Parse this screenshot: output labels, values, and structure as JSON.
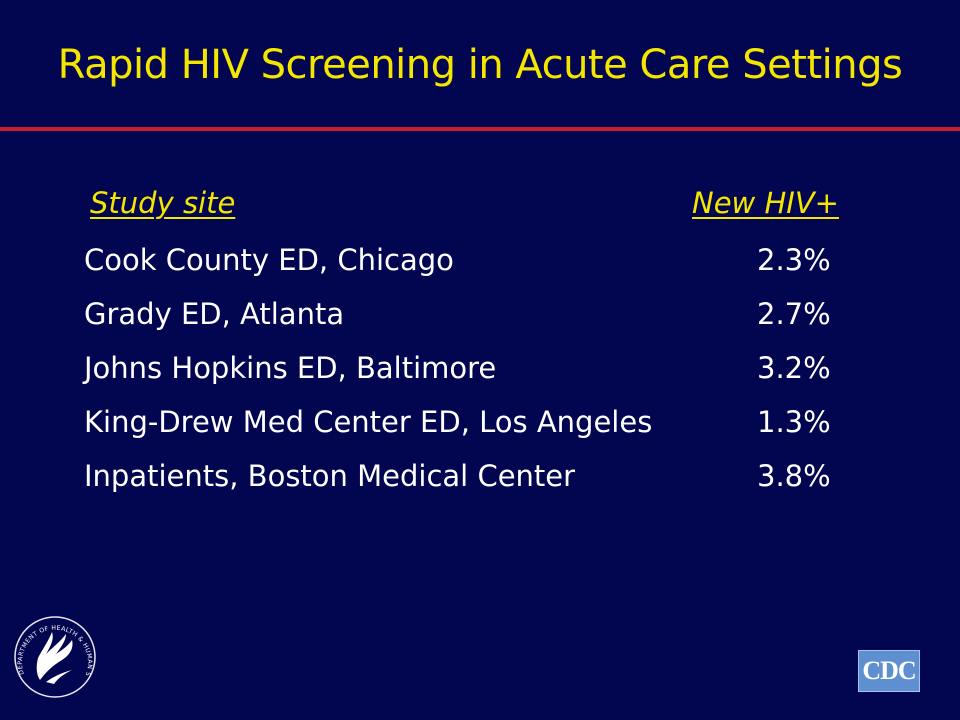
{
  "slide": {
    "title": "Rapid HIV Screening in Acute Care Settings"
  },
  "table": {
    "headers": {
      "site": "Study site",
      "rate": "New HIV+"
    },
    "rows": [
      {
        "site": "Cook County ED, Chicago",
        "rate": "2.3%"
      },
      {
        "site": "Grady ED, Atlanta",
        "rate": "2.7%"
      },
      {
        "site": "Johns Hopkins ED, Baltimore",
        "rate": "3.2%"
      },
      {
        "site": "King-Drew Med Center ED, Los Angeles",
        "rate": "1.3%"
      },
      {
        "site": "Inpatients, Boston Medical Center",
        "rate": "3.8%"
      }
    ]
  },
  "logos": {
    "cdc": "CDC",
    "hhs_seal_text": "DEPARTMENT OF HEALTH & HUMAN SERVICES · USA"
  },
  "colors": {
    "background": "#020550",
    "title": "#f5e600",
    "rule": "#c8202a",
    "body_text": "#ffffff",
    "cdc_logo": "#5d8fd1"
  }
}
